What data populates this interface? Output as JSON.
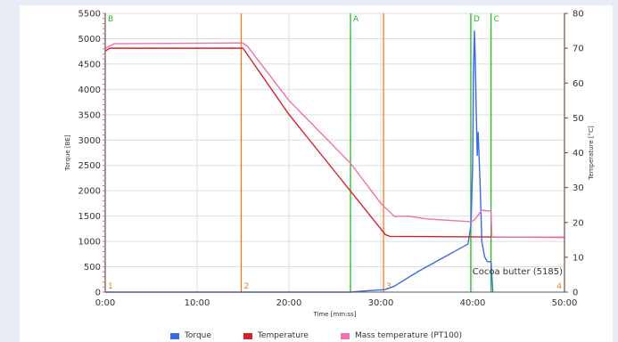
{
  "chart_data": {
    "type": "line",
    "xlabel": "Time [mm:ss]",
    "ylabel": "Torque [BE]",
    "y2label": "Temperature [°C]",
    "xlim": [
      0,
      50
    ],
    "ylim": [
      0,
      5500
    ],
    "y2lim": [
      0,
      80
    ],
    "x_ticks": [
      "0:00",
      "10:00",
      "20:00",
      "30:00",
      "40:00",
      "50:00"
    ],
    "y_ticks": [
      "0",
      "500",
      "1000",
      "1500",
      "2000",
      "2500",
      "3000",
      "3500",
      "4000",
      "4500",
      "5000",
      "5500"
    ],
    "y2_ticks": [
      "0",
      "10",
      "20",
      "30",
      "40",
      "50",
      "60",
      "70",
      "80"
    ],
    "grid": true,
    "legend_position": "bottom",
    "series": [
      {
        "name": "Torque",
        "axis": "left",
        "color": "#3a6be0",
        "points": [
          [
            0,
            0
          ],
          [
            26.7,
            0
          ],
          [
            28,
            20
          ],
          [
            30.5,
            50
          ],
          [
            31.5,
            120
          ],
          [
            34,
            400
          ],
          [
            37,
            700
          ],
          [
            39.5,
            950
          ],
          [
            39.8,
            1300
          ],
          [
            40.0,
            2500
          ],
          [
            40.1,
            4300
          ],
          [
            40.2,
            5150
          ],
          [
            40.3,
            4500
          ],
          [
            40.4,
            3500
          ],
          [
            40.5,
            2700
          ],
          [
            40.6,
            3150
          ],
          [
            40.8,
            2200
          ],
          [
            41.0,
            1000
          ],
          [
            41.3,
            700
          ],
          [
            41.6,
            600
          ],
          [
            42.0,
            600
          ],
          [
            42.2,
            0
          ]
        ]
      },
      {
        "name": "Temperature",
        "axis": "right",
        "color": "#d6202f",
        "points": [
          [
            0,
            69.2
          ],
          [
            0.5,
            70
          ],
          [
            15,
            70
          ],
          [
            20,
            51
          ],
          [
            26.7,
            29
          ],
          [
            30.5,
            16.5
          ],
          [
            31,
            16
          ],
          [
            50,
            15.7
          ]
        ]
      },
      {
        "name": "Mass temperature (PT100)",
        "axis": "right",
        "color": "#f070b0",
        "points": [
          [
            0,
            70
          ],
          [
            1,
            71.3
          ],
          [
            15,
            71.5
          ],
          [
            15.5,
            70.5
          ],
          [
            20,
            55
          ],
          [
            26.7,
            37
          ],
          [
            30,
            25.5
          ],
          [
            31.5,
            21.7
          ],
          [
            33,
            21.8
          ],
          [
            35,
            21
          ],
          [
            39.8,
            20.2
          ],
          [
            40.2,
            20.7
          ],
          [
            41,
            23.5
          ],
          [
            42,
            23.2
          ],
          [
            42.1,
            15.8
          ],
          [
            50,
            15.8
          ]
        ]
      }
    ],
    "markers": [
      {
        "label": "B",
        "x": 0,
        "color": "#22bb22"
      },
      {
        "label": "A",
        "x": 26.7,
        "color": "#22bb22"
      },
      {
        "label": "D",
        "x": 39.8,
        "color": "#22bb22"
      },
      {
        "label": "C",
        "x": 42.0,
        "color": "#22bb22"
      },
      {
        "label": "1",
        "x": 0,
        "color": "#ef7d1e"
      },
      {
        "label": "2",
        "x": 14.8,
        "color": "#ef7d1e"
      },
      {
        "label": "3",
        "x": 30.3,
        "color": "#ef7d1e"
      },
      {
        "label": "4",
        "x": 50,
        "color": "#ef7d1e"
      }
    ],
    "annotation": "Cocoa butter (5185)"
  }
}
